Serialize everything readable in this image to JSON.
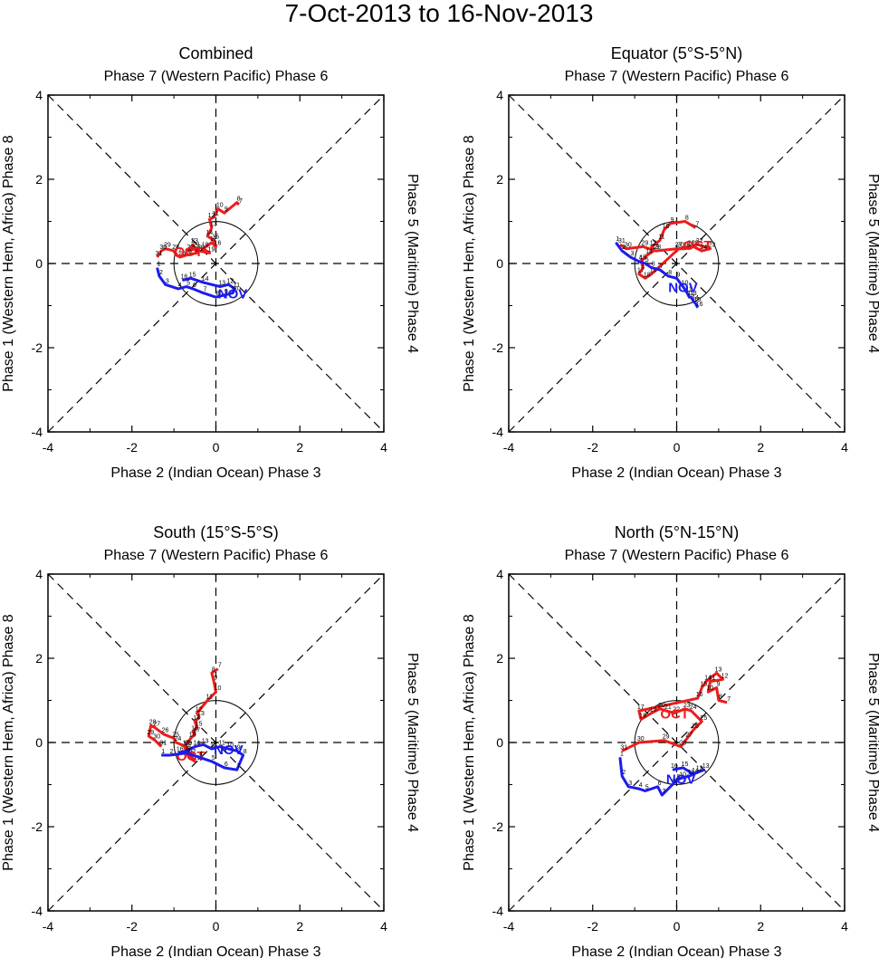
{
  "figure": {
    "title": "7-Oct-2013 to 16-Nov-2013"
  },
  "axis_text": {
    "top": "Phase 7 (Western Pacific) Phase 6",
    "bottom": "Phase 2 (Indian Ocean) Phase 3",
    "left": "Phase 1 (Western Hem, Africa) Phase 8",
    "right": "Phase 5 (Maritime) Phase 4",
    "ticks": [
      "-4",
      "-2",
      "0",
      "2",
      "4"
    ]
  },
  "colors": {
    "oct": "#ee1c1c",
    "nov": "#1c1cee",
    "axes": "#000000"
  },
  "chart_data": [
    {
      "type": "line",
      "title": "Combined",
      "xlim": [
        -4,
        4
      ],
      "ylim": [
        -4,
        4
      ],
      "xlabel": "Phase 2 (Indian Ocean) Phase 3",
      "ylabel": "Phase 1 (Western Hem, Africa) Phase 8",
      "series": [
        {
          "name": "OCT",
          "color": "#ee1c1c",
          "labels": [
            "7",
            "8",
            "9",
            "10",
            "11",
            "12",
            "13",
            "14",
            "15",
            "16",
            "17",
            "18",
            "19",
            "20",
            "21",
            "22",
            "23",
            "24",
            "25",
            "26",
            "27",
            "28",
            "29",
            "30",
            "31"
          ],
          "x": [
            0.55,
            0.5,
            0.2,
            0.05,
            -0.05,
            -0.15,
            -0.1,
            -0.2,
            -0.05,
            0.0,
            -0.1,
            -0.3,
            -0.15,
            -0.4,
            -0.5,
            -0.65,
            -0.55,
            -0.45,
            -0.7,
            -0.85,
            -0.95,
            -1.0,
            -1.2,
            -1.3,
            -1.4
          ],
          "y": [
            1.4,
            1.45,
            1.2,
            1.3,
            1.1,
            1.05,
            0.85,
            0.65,
            0.55,
            0.4,
            0.5,
            0.35,
            0.25,
            0.3,
            0.35,
            0.3,
            0.45,
            0.25,
            0.2,
            0.15,
            0.2,
            0.3,
            0.35,
            0.3,
            0.15
          ]
        },
        {
          "name": "NOV",
          "color": "#1c1cee",
          "labels": [
            "1",
            "2",
            "3",
            "4",
            "5",
            "6",
            "7",
            "8",
            "9",
            "10",
            "11",
            "12",
            "13",
            "14",
            "15",
            "16"
          ],
          "x": [
            -1.4,
            -1.35,
            -1.2,
            -0.9,
            -0.7,
            -0.55,
            -0.3,
            0.0,
            0.2,
            0.4,
            0.45,
            0.3,
            0.1,
            -0.3,
            -0.6,
            -0.8
          ],
          "y": [
            -0.1,
            -0.3,
            -0.5,
            -0.6,
            -0.55,
            -0.6,
            -0.7,
            -0.8,
            -0.75,
            -0.7,
            -0.6,
            -0.5,
            -0.55,
            -0.45,
            -0.35,
            -0.4
          ]
        }
      ]
    },
    {
      "type": "line",
      "title": "Equator (5°S-5°N)",
      "xlim": [
        -4,
        4
      ],
      "ylim": [
        -4,
        4
      ],
      "xlabel": "Phase 2 (Indian Ocean) Phase 3",
      "ylabel": "Phase 1 (Western Hem, Africa) Phase 8",
      "series": [
        {
          "name": "OCT",
          "color": "#ee1c1c",
          "labels": [
            "7",
            "8",
            "9",
            "10",
            "11",
            "12",
            "13",
            "14",
            "15",
            "16",
            "17",
            "18",
            "19",
            "20",
            "21",
            "22",
            "23",
            "24",
            "25",
            "26",
            "27",
            "28",
            "29",
            "30",
            "31"
          ],
          "x": [
            0.45,
            0.2,
            -0.15,
            -0.3,
            -0.4,
            -0.6,
            -0.55,
            -0.7,
            -0.85,
            -0.8,
            -0.9,
            -0.75,
            -0.6,
            0.05,
            0.3,
            0.5,
            0.8,
            0.6,
            0.4,
            0.2,
            0.0,
            -0.5,
            -0.8,
            -1.2,
            -1.35
          ],
          "y": [
            0.85,
            1.0,
            0.95,
            0.8,
            0.55,
            0.4,
            0.3,
            0.2,
            0.05,
            -0.1,
            -0.25,
            -0.35,
            -0.25,
            0.35,
            0.4,
            0.45,
            0.35,
            0.3,
            0.4,
            0.35,
            0.35,
            0.3,
            0.4,
            0.35,
            0.45
          ]
        },
        {
          "name": "NOV",
          "color": "#1c1cee",
          "labels": [
            "1",
            "2",
            "3",
            "4",
            "5",
            "6",
            "7",
            "8",
            "9",
            "10",
            "11",
            "12",
            "13",
            "14",
            "15",
            "16"
          ],
          "x": [
            -1.45,
            -1.3,
            -1.1,
            -0.9,
            -0.75,
            -0.6,
            -0.4,
            -0.2,
            0.0,
            0.15,
            0.25,
            0.3,
            0.35,
            0.4,
            0.45,
            0.5
          ],
          "y": [
            0.5,
            0.3,
            0.15,
            0.05,
            0.0,
            -0.1,
            -0.15,
            -0.3,
            -0.35,
            -0.55,
            -0.7,
            -0.8,
            -0.8,
            -0.9,
            -0.95,
            -1.05
          ]
        }
      ]
    },
    {
      "type": "line",
      "title": "South (15°S-5°S)",
      "xlim": [
        -4,
        4
      ],
      "ylim": [
        -4,
        4
      ],
      "xlabel": "Phase 2 (Indian Ocean) Phase 3",
      "ylabel": "Phase 1 (Western Hem, Africa) Phase 8",
      "series": [
        {
          "name": "OCT",
          "color": "#ee1c1c",
          "labels": [
            "7",
            "8",
            "9",
            "10",
            "11",
            "12",
            "13",
            "14",
            "15",
            "16",
            "17",
            "18",
            "19",
            "20",
            "21",
            "22",
            "23",
            "24",
            "25",
            "26",
            "27",
            "28",
            "29",
            "30",
            "31"
          ],
          "x": [
            0.05,
            -0.1,
            -0.05,
            0.0,
            -0.2,
            -0.45,
            -0.4,
            -0.5,
            -0.45,
            -0.55,
            -0.5,
            -0.6,
            -0.75,
            -0.65,
            -0.5,
            -0.6,
            -0.7,
            -0.95,
            -1.0,
            -1.25,
            -1.45,
            -1.55,
            -1.6,
            -1.45,
            -1.3
          ],
          "y": [
            1.75,
            1.65,
            1.45,
            1.2,
            1.0,
            0.7,
            0.6,
            0.5,
            0.35,
            0.25,
            0.2,
            0.1,
            -0.1,
            -0.35,
            -0.45,
            -0.3,
            -0.1,
            0.0,
            0.1,
            0.2,
            0.35,
            0.4,
            0.15,
            0.05,
            -0.1
          ]
        },
        {
          "name": "NOV",
          "color": "#1c1cee",
          "labels": [
            "1",
            "2",
            "3",
            "4",
            "5",
            "6",
            "7",
            "8",
            "9",
            "10",
            "11",
            "12",
            "13",
            "14",
            "15",
            "16"
          ],
          "x": [
            -1.3,
            -1.1,
            -0.7,
            -0.4,
            -0.1,
            0.2,
            0.5,
            0.65,
            0.5,
            0.3,
            0.1,
            -0.1,
            -0.3,
            -0.5,
            -0.7,
            -0.9
          ],
          "y": [
            -0.3,
            -0.3,
            -0.25,
            -0.35,
            -0.45,
            -0.6,
            -0.65,
            -0.3,
            -0.2,
            -0.15,
            -0.1,
            -0.15,
            -0.05,
            -0.1,
            -0.2,
            -0.25
          ]
        }
      ]
    },
    {
      "type": "line",
      "title": "North (5°N-15°N)",
      "xlim": [
        -4,
        4
      ],
      "ylim": [
        -4,
        4
      ],
      "xlabel": "Phase 2 (Indian Ocean) Phase 3",
      "ylabel": "Phase 1 (Western Hem, Africa) Phase 8",
      "series": [
        {
          "name": "OCT",
          "color": "#ee1c1c",
          "labels": [
            "7",
            "8",
            "9",
            "10",
            "11",
            "12",
            "13",
            "14",
            "15",
            "16",
            "17",
            "18",
            "19",
            "20",
            "21",
            "22",
            "23",
            "24",
            "25",
            "26",
            "27",
            "28",
            "29",
            "30",
            "31"
          ],
          "x": [
            1.2,
            1.0,
            0.95,
            0.75,
            0.8,
            1.1,
            0.95,
            0.7,
            0.6,
            0.5,
            -0.9,
            -0.85,
            -0.6,
            -0.4,
            -0.25,
            -0.05,
            0.2,
            0.35,
            0.6,
            0.4,
            0.25,
            0.1,
            -0.3,
            -0.9,
            -1.3
          ],
          "y": [
            0.95,
            1.0,
            1.3,
            1.2,
            1.45,
            1.5,
            1.65,
            1.45,
            1.3,
            1.05,
            0.75,
            0.55,
            0.7,
            0.8,
            0.75,
            0.7,
            0.8,
            0.75,
            0.5,
            0.3,
            0.1,
            -0.1,
            0.05,
            0.0,
            -0.2
          ]
        },
        {
          "name": "NOV",
          "color": "#1c1cee",
          "labels": [
            "1",
            "2",
            "3",
            "4",
            "5",
            "6",
            "7",
            "8",
            "9",
            "10",
            "11",
            "12",
            "13",
            "14",
            "15",
            "16"
          ],
          "x": [
            -1.35,
            -1.3,
            -1.15,
            -0.9,
            -0.75,
            -0.45,
            -0.35,
            -0.1,
            0.0,
            0.1,
            0.3,
            0.5,
            0.65,
            0.4,
            0.15,
            -0.1
          ],
          "y": [
            -0.35,
            -0.8,
            -1.05,
            -1.1,
            -1.15,
            -1.05,
            -1.25,
            -1.0,
            -0.9,
            -0.85,
            -0.8,
            -0.7,
            -0.65,
            -0.75,
            -0.6,
            -0.65
          ]
        }
      ]
    }
  ]
}
